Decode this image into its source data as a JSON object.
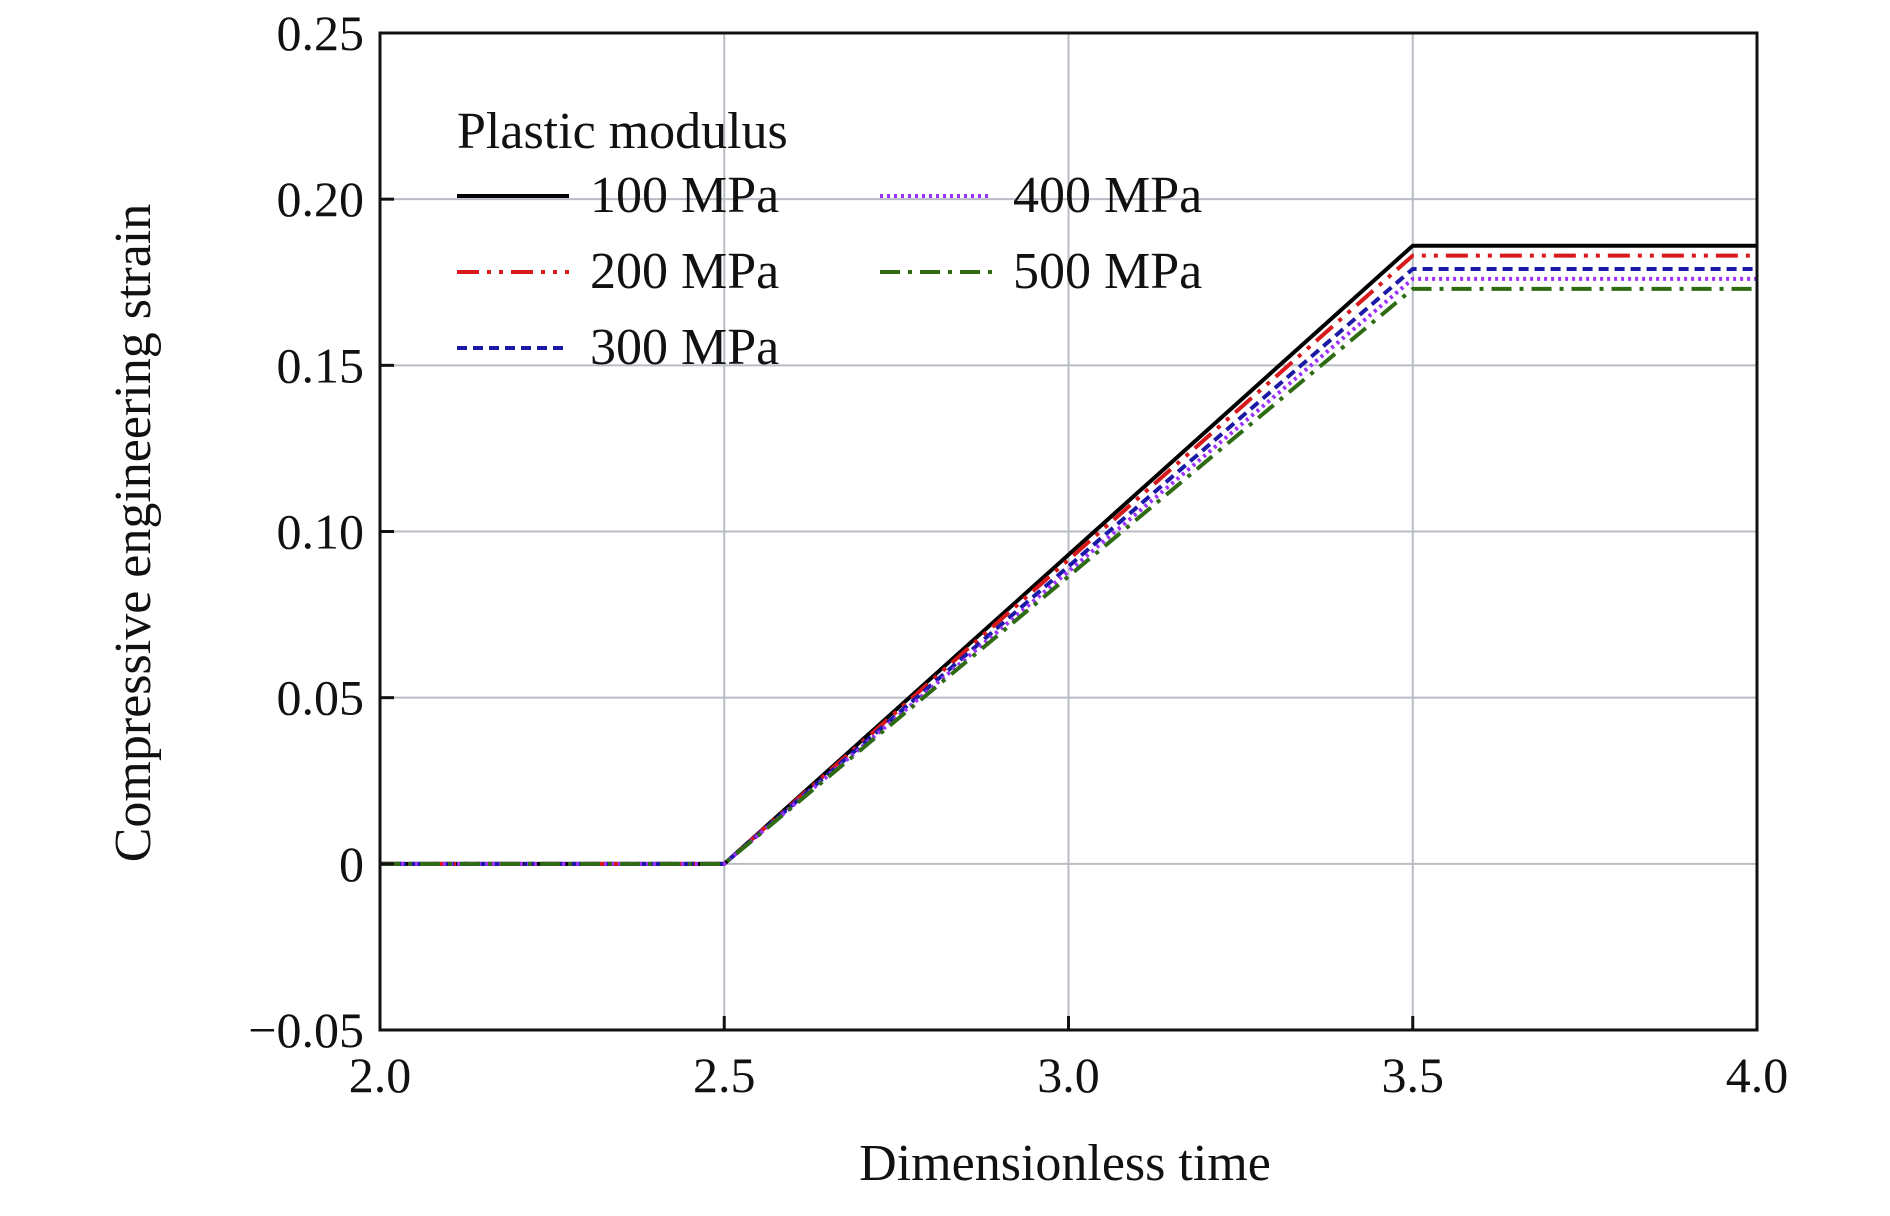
{
  "chart_data": {
    "type": "line",
    "title": "",
    "xlabel": "Dimensionless time",
    "ylabel": "Compressive engineering strain",
    "xlim": [
      2.0,
      4.0
    ],
    "ylim": [
      -0.05,
      0.25
    ],
    "xticks": [
      2.0,
      2.5,
      3.0,
      3.5,
      4.0
    ],
    "xtick_labels": [
      "2.0",
      "2.5",
      "3.0",
      "3.5",
      "4.0"
    ],
    "yticks": [
      -0.05,
      0,
      0.05,
      0.1,
      0.15,
      0.2,
      0.25
    ],
    "ytick_labels": [
      "−0.05",
      "0",
      "0.05",
      "0.10",
      "0.15",
      "0.20",
      "0.25"
    ],
    "grid": true,
    "legend": {
      "title": "Plastic modulus",
      "placement": "top-left"
    },
    "series": [
      {
        "name": "100 MPa",
        "color": "#000000",
        "style": "solid",
        "x": [
          2.0,
          2.5,
          3.5,
          4.0
        ],
        "y": [
          0,
          0,
          0.186,
          0.186
        ]
      },
      {
        "name": "200 MPa",
        "color": "#d7191c",
        "style": "dash-dot-dot",
        "x": [
          2.0,
          2.5,
          3.5,
          4.0
        ],
        "y": [
          0,
          0,
          0.183,
          0.183
        ]
      },
      {
        "name": "300 MPa",
        "color": "#1a1aa6",
        "style": "dashed",
        "x": [
          2.0,
          2.5,
          3.5,
          4.0
        ],
        "y": [
          0,
          0,
          0.179,
          0.179
        ]
      },
      {
        "name": "400 MPa",
        "color": "#9b30ff",
        "style": "dotted",
        "x": [
          2.0,
          2.5,
          3.5,
          4.0
        ],
        "y": [
          0,
          0,
          0.176,
          0.176
        ]
      },
      {
        "name": "500 MPa",
        "color": "#2e6b12",
        "style": "dash-dot",
        "x": [
          2.0,
          2.5,
          3.5,
          4.0
        ],
        "y": [
          0,
          0,
          0.173,
          0.173
        ]
      }
    ]
  }
}
